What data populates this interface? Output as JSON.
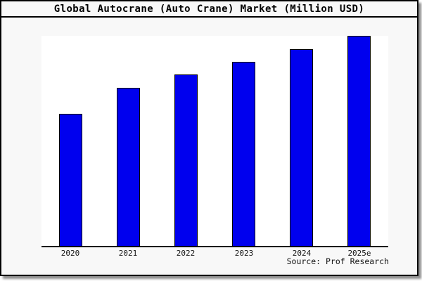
{
  "title": "Global Autocrane (Auto Crane) Market (Million USD)",
  "source_credit": "Source: Prof Research",
  "colors": {
    "bar_fill": "#0000ee",
    "bar_border": "#000000",
    "frame_background": "#f8f8f8",
    "plot_background": "#ffffff",
    "frame_border": "#000000",
    "shadow": "#999999",
    "text": "#000000"
  },
  "chart_data": {
    "type": "bar",
    "title": "Global Autocrane (Auto Crane) Market (Million USD)",
    "categories": [
      "2020",
      "2021",
      "2022",
      "2023",
      "2024",
      "2025e"
    ],
    "values_percent_of_max": [
      62.8,
      75.1,
      81.5,
      87.5,
      93.7,
      100
    ],
    "xlabel": "",
    "ylabel": "",
    "y_axis_visible": false,
    "grid": false,
    "legend_position": "none",
    "note": "No numeric y-axis or data labels shown; values are bar heights as percent of the tallest bar (2025e)."
  }
}
